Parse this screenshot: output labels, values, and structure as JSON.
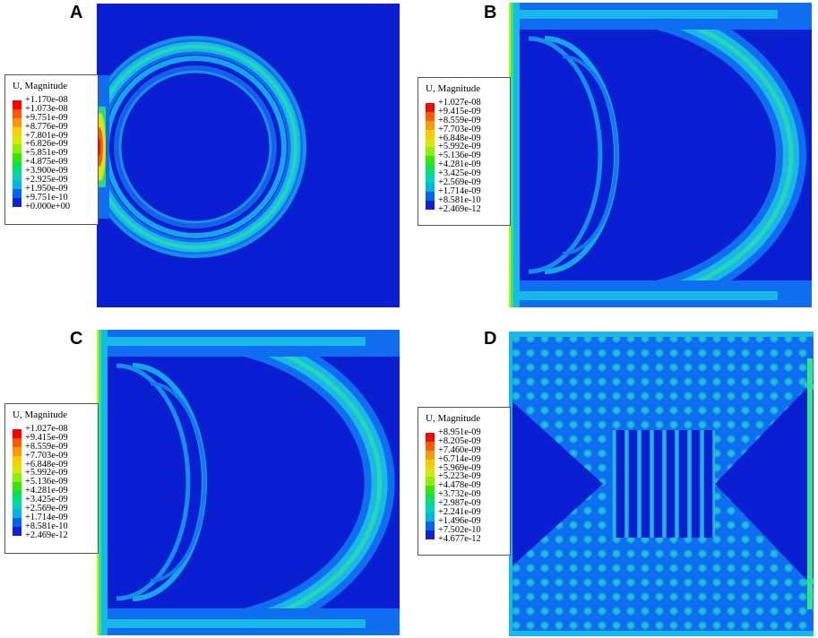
{
  "colors": {
    "background_field": "#0a1ed2",
    "contour_scale": [
      "#ff0000",
      "#ff5a00",
      "#ff9a00",
      "#ffcc00",
      "#d8e800",
      "#8cf000",
      "#2ee800",
      "#00e25c",
      "#00d6b4",
      "#00b4e8",
      "#0064f0",
      "#1420d8"
    ]
  },
  "panels": [
    {
      "label": "A",
      "legend": {
        "title": "U, Magnitude",
        "values": [
          "+1.170e-08",
          "+1.073e-08",
          "+9.751e-09",
          "+8.776e-09",
          "+7.801e-09",
          "+6.826e-09",
          "+5.851e-09",
          "+4.875e-09",
          "+3.900e-09",
          "+2.925e-09",
          "+1.950e-09",
          "+9.751e-10",
          "+0.000e+00"
        ]
      }
    },
    {
      "label": "B",
      "legend": {
        "title": "U, Magnitude",
        "values": [
          "+1.027e-08",
          "+9.415e-09",
          "+8.559e-09",
          "+7.703e-09",
          "+6.848e-09",
          "+5.992e-09",
          "+5.136e-09",
          "+4.281e-09",
          "+3.425e-09",
          "+2.569e-09",
          "+1.714e-09",
          "+8.581e-10",
          "+2.469e-12"
        ]
      }
    },
    {
      "label": "C",
      "legend": {
        "title": "U, Magnitude",
        "values": [
          "+1.027e-08",
          "+9.415e-09",
          "+8.559e-09",
          "+7.703e-09",
          "+6.848e-09",
          "+5.992e-09",
          "+5.136e-09",
          "+4.281e-09",
          "+3.425e-09",
          "+2.569e-09",
          "+1.714e-09",
          "+8.581e-10",
          "+2.469e-12"
        ]
      }
    },
    {
      "label": "D",
      "legend": {
        "title": "U, Magnitude",
        "values": [
          "+8.951e-09",
          "+8.205e-09",
          "+7.460e-09",
          "+6.714e-09",
          "+5.969e-09",
          "+5.223e-09",
          "+4.478e-09",
          "+3.732e-09",
          "+2.987e-09",
          "+2.241e-09",
          "+1.496e-09",
          "+7.502e-10",
          "+4.677e-12"
        ]
      }
    }
  ]
}
